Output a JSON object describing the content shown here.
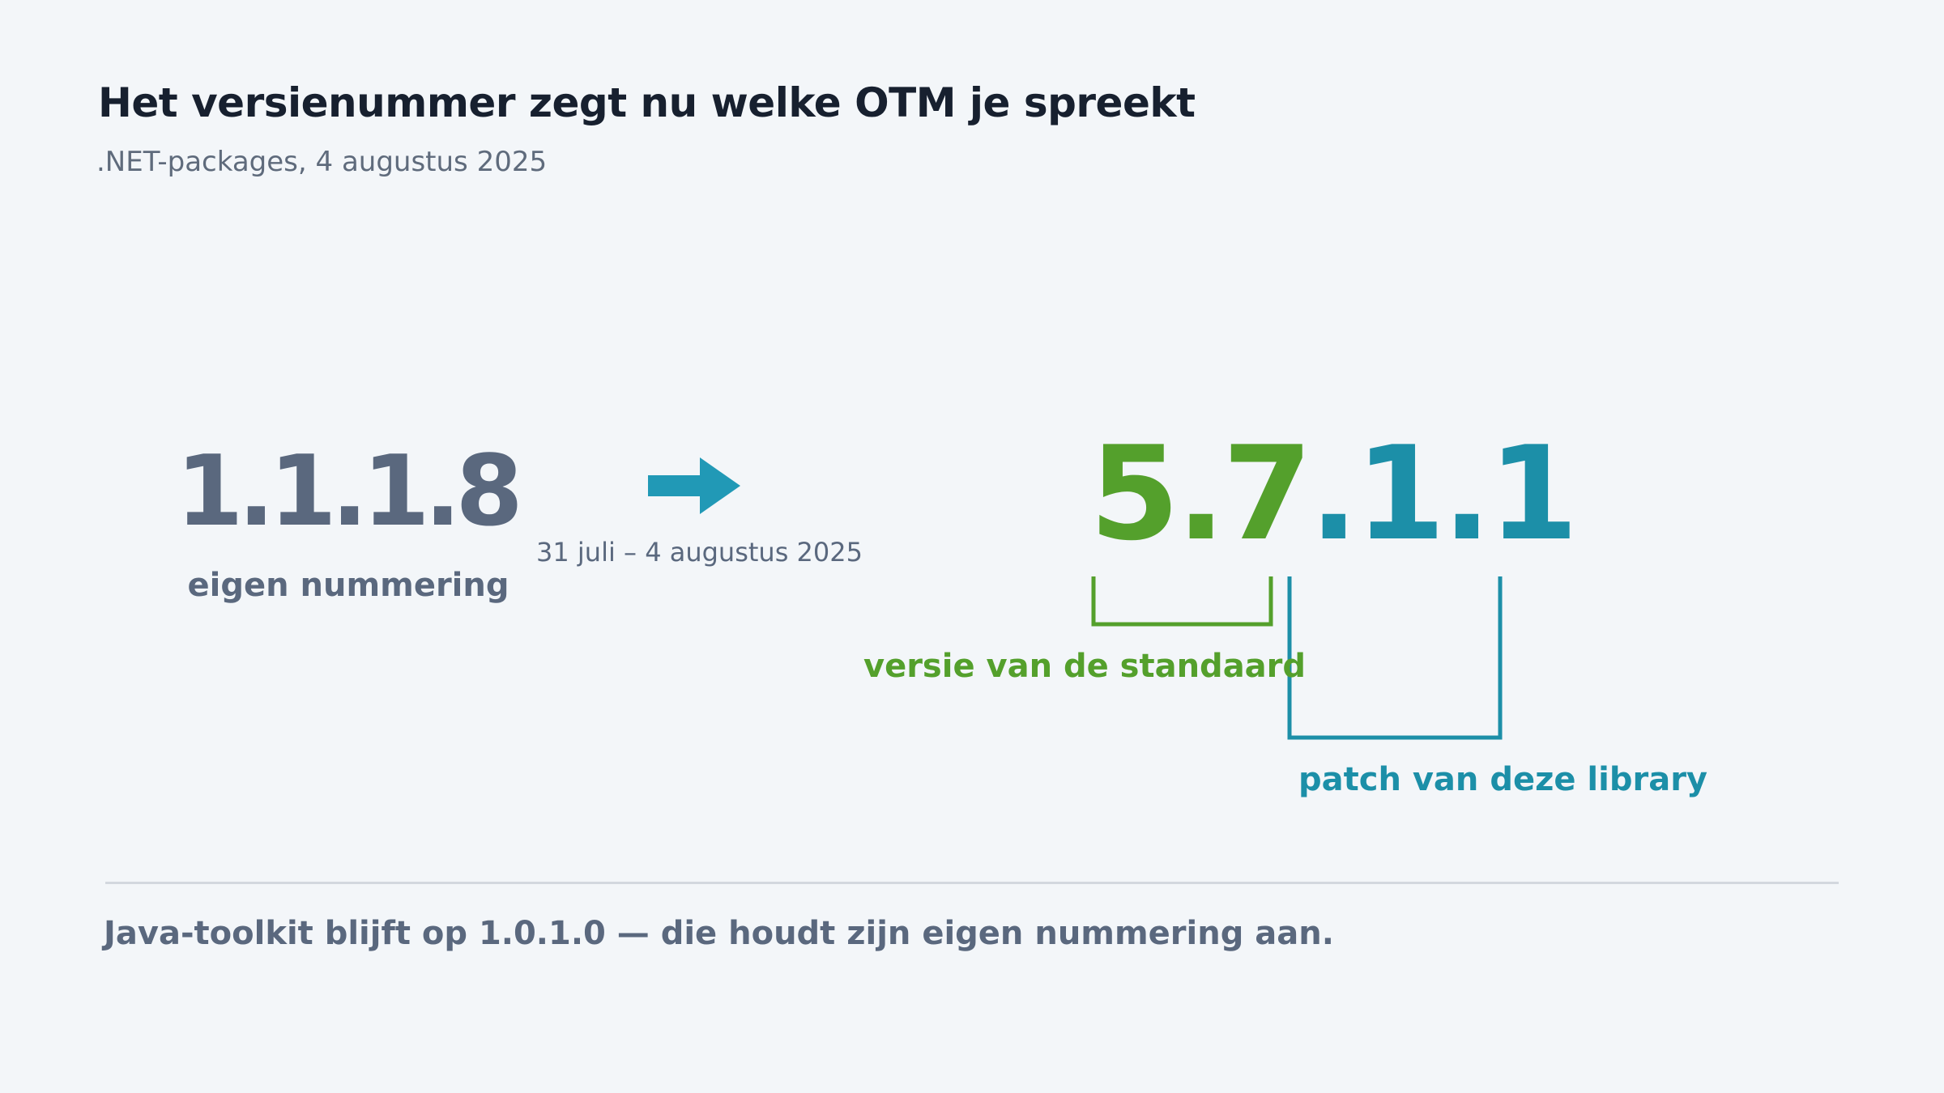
{
  "header": {
    "title": "Het versienummer zegt nu welke OTM je spreekt",
    "subtitle": ".NET-packages, 4 augustus 2025"
  },
  "old": {
    "version": "1.1.1.8",
    "caption": "eigen nummering"
  },
  "transition": {
    "icon": "arrow-right-icon",
    "date_range": "31 juli – 4 augustus 2025"
  },
  "new": {
    "segments": {
      "standard": "5.7",
      "dot1": ".",
      "patch_major": "1",
      "dot2": ".",
      "patch_minor": "1"
    },
    "standard_label": "versie van de standaard",
    "patch_label": "patch van deze library"
  },
  "footer": {
    "note": "Java-toolkit blijft op 1.0.1.0 — die houdt zijn eigen nummering aan."
  },
  "colors": {
    "standard": "#54a02c",
    "patch": "#1c8fa8",
    "old": "#5a687e",
    "arrow": "#2199b6"
  }
}
